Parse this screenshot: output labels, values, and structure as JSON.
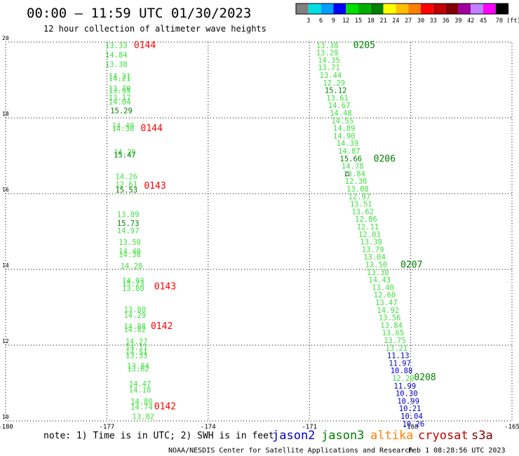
{
  "header": {
    "title": "00:00 – 11:59 UTC 01/30/2023",
    "subtitle": "12 hour collection of altimeter wave heights"
  },
  "colorbar": {
    "labels": [
      "3",
      "6",
      "9",
      "12",
      "15",
      "18",
      "21",
      "24",
      "27",
      "30",
      "33",
      "36",
      "39",
      "42",
      "45",
      "70 (ft)"
    ],
    "colors": [
      "#808080",
      "#00e0e0",
      "#00a0ff",
      "#0000ff",
      "#00e000",
      "#00b000",
      "#008000",
      "#ffff00",
      "#ffc000",
      "#ff8000",
      "#ff0000",
      "#c00000",
      "#800000",
      "#a000a0",
      "#c080ff",
      "#ff00ff",
      "#000000"
    ]
  },
  "footer": {
    "note": "note: 1) Time is in UTC; 2) SWH is in feet",
    "legend": [
      {
        "name": "jason2",
        "color": "#0000c0"
      },
      {
        "name": "jason3",
        "color": "#008000"
      },
      {
        "name": "altika",
        "color": "#ff8000"
      },
      {
        "name": "cryosat",
        "color": "#c00000"
      },
      {
        "name": "s3a",
        "color": "#800000"
      }
    ],
    "credit": "NOAA/NESDIS Center for Satellite Applications and Research",
    "timestamp": "Feb  1 08:28:56 UTC 2023"
  },
  "chart_data": {
    "type": "scatter",
    "xlim": [
      -180,
      -165
    ],
    "ylim": [
      10,
      20
    ],
    "x_ticks": [
      "-180",
      "-177",
      "-174",
      "-171",
      "-168",
      "-165"
    ],
    "y_ticks": [
      "10",
      "12",
      "14",
      "16",
      "18",
      "20"
    ],
    "grid": true,
    "tracks": [
      {
        "id": "left",
        "points": [
          {
            "x": -177.05,
            "y": 19.92,
            "v": "13.33",
            "c": "#40e040"
          },
          {
            "x": -177.05,
            "y": 19.67,
            "v": "14.84",
            "c": "#40e040"
          },
          {
            "x": -177.05,
            "y": 19.42,
            "v": "13.38",
            "c": "#40e040"
          },
          {
            "x": -176.95,
            "y": 19.1,
            "v": "14.21",
            "c": "#40e040"
          },
          {
            "x": -176.95,
            "y": 19.05,
            "v": "14.21",
            "c": "#40e040"
          },
          {
            "x": -176.95,
            "y": 18.78,
            "v": "13.29",
            "c": "#40e040"
          },
          {
            "x": -176.95,
            "y": 18.72,
            "v": "13.95",
            "c": "#40e040"
          },
          {
            "x": -176.95,
            "y": 18.54,
            "v": "13.17",
            "c": "#40e040"
          },
          {
            "x": -176.95,
            "y": 18.43,
            "v": "14.04",
            "c": "#40e040"
          },
          {
            "x": -176.9,
            "y": 18.19,
            "v": "15.29",
            "c": "#008000"
          },
          {
            "x": -176.85,
            "y": 17.8,
            "v": "14.49",
            "c": "#40e040"
          },
          {
            "x": -176.85,
            "y": 17.72,
            "v": "14.38",
            "c": "#40e040"
          },
          {
            "x": -176.8,
            "y": 17.1,
            "v": "14.29",
            "c": "#40e040"
          },
          {
            "x": -176.8,
            "y": 17.03,
            "v": "15.47",
            "c": "#008000"
          },
          {
            "x": -176.75,
            "y": 16.45,
            "v": "14.26",
            "c": "#40e040"
          },
          {
            "x": -176.75,
            "y": 16.25,
            "v": "12.61",
            "c": "#40e040"
          },
          {
            "x": -176.75,
            "y": 16.1,
            "v": "15.53",
            "c": "#008000"
          },
          {
            "x": -176.7,
            "y": 15.45,
            "v": "13.89",
            "c": "#40e040"
          },
          {
            "x": -176.7,
            "y": 15.22,
            "v": "15.73",
            "c": "#008000"
          },
          {
            "x": -176.7,
            "y": 15.03,
            "v": "14.97",
            "c": "#40e040"
          },
          {
            "x": -176.65,
            "y": 14.72,
            "v": "13.50",
            "c": "#40e040"
          },
          {
            "x": -176.65,
            "y": 14.48,
            "v": "14.40",
            "c": "#40e040"
          },
          {
            "x": -176.65,
            "y": 14.4,
            "v": "14.38",
            "c": "#40e040"
          },
          {
            "x": -176.6,
            "y": 14.09,
            "v": "14.28",
            "c": "#40e040"
          },
          {
            "x": -176.55,
            "y": 13.7,
            "v": "14.93",
            "c": "#40e040"
          },
          {
            "x": -176.55,
            "y": 13.63,
            "v": "15.23",
            "c": "#40e040"
          },
          {
            "x": -176.55,
            "y": 13.5,
            "v": "13.80",
            "c": "#40e040"
          },
          {
            "x": -176.5,
            "y": 12.94,
            "v": "13.80",
            "c": "#40e040"
          },
          {
            "x": -176.5,
            "y": 12.8,
            "v": "14.29",
            "c": "#40e040"
          },
          {
            "x": -176.5,
            "y": 12.5,
            "v": "14.88",
            "c": "#40e040"
          },
          {
            "x": -176.5,
            "y": 12.42,
            "v": "14.82",
            "c": "#40e040"
          },
          {
            "x": -176.45,
            "y": 12.1,
            "v": "14.27",
            "c": "#40e040"
          },
          {
            "x": -176.45,
            "y": 11.95,
            "v": "14.11",
            "c": "#40e040"
          },
          {
            "x": -176.45,
            "y": 11.82,
            "v": "14.51",
            "c": "#40e040"
          },
          {
            "x": -176.45,
            "y": 11.73,
            "v": "13.33",
            "c": "#40e040"
          },
          {
            "x": -176.4,
            "y": 11.45,
            "v": "13.84",
            "c": "#40e040"
          },
          {
            "x": -176.4,
            "y": 11.38,
            "v": "13.62",
            "c": "#40e040"
          },
          {
            "x": -176.35,
            "y": 10.98,
            "v": "14.47",
            "c": "#40e040"
          },
          {
            "x": -176.35,
            "y": 10.82,
            "v": "14.18",
            "c": "#40e040"
          },
          {
            "x": -176.3,
            "y": 10.52,
            "v": "14.80",
            "c": "#40e040"
          },
          {
            "x": -176.3,
            "y": 10.37,
            "v": "14.74",
            "c": "#40e040"
          },
          {
            "x": -176.25,
            "y": 10.12,
            "v": "13.82",
            "c": "#40e040"
          }
        ]
      },
      {
        "id": "right",
        "points": [
          {
            "x": -170.8,
            "y": 19.92,
            "v": "13.38",
            "c": "#40e040"
          },
          {
            "x": -170.8,
            "y": 19.72,
            "v": "13.29",
            "c": "#40e040"
          },
          {
            "x": -170.75,
            "y": 19.53,
            "v": "14.35",
            "c": "#40e040"
          },
          {
            "x": -170.75,
            "y": 19.33,
            "v": "13.71",
            "c": "#40e040"
          },
          {
            "x": -170.7,
            "y": 19.13,
            "v": "13.44",
            "c": "#40e040"
          },
          {
            "x": -170.6,
            "y": 18.93,
            "v": "12.29",
            "c": "#40e040"
          },
          {
            "x": -170.55,
            "y": 18.73,
            "v": "15.12",
            "c": "#008000"
          },
          {
            "x": -170.5,
            "y": 18.53,
            "v": "13.61",
            "c": "#40e040"
          },
          {
            "x": -170.45,
            "y": 18.33,
            "v": "14.67",
            "c": "#40e040"
          },
          {
            "x": -170.4,
            "y": 18.13,
            "v": "14.48",
            "c": "#40e040"
          },
          {
            "x": -170.35,
            "y": 17.93,
            "v": "14.55",
            "c": "#40e040"
          },
          {
            "x": -170.3,
            "y": 17.73,
            "v": "14.89",
            "c": "#40e040"
          },
          {
            "x": -170.3,
            "y": 17.53,
            "v": "14.90",
            "c": "#40e040"
          },
          {
            "x": -170.2,
            "y": 17.33,
            "v": "14.39",
            "c": "#40e040"
          },
          {
            "x": -170.15,
            "y": 17.13,
            "v": "14.87",
            "c": "#40e040"
          },
          {
            "x": -170.1,
            "y": 16.93,
            "v": "15.66",
            "c": "#008000"
          },
          {
            "x": -170.05,
            "y": 16.73,
            "v": "14.78",
            "c": "#40e040"
          },
          {
            "x": -170.0,
            "y": 16.53,
            "v": "13.84",
            "c": "#40e040"
          },
          {
            "x": -169.95,
            "y": 16.33,
            "v": "12.30",
            "c": "#40e040"
          },
          {
            "x": -169.9,
            "y": 16.13,
            "v": "13.08",
            "c": "#40e040"
          },
          {
            "x": -169.85,
            "y": 15.93,
            "v": "12.97",
            "c": "#40e040"
          },
          {
            "x": -169.8,
            "y": 15.73,
            "v": "13.51",
            "c": "#40e040"
          },
          {
            "x": -169.75,
            "y": 15.53,
            "v": "13.62",
            "c": "#40e040"
          },
          {
            "x": -169.65,
            "y": 15.33,
            "v": "12.86",
            "c": "#40e040"
          },
          {
            "x": -169.6,
            "y": 15.13,
            "v": "12.11",
            "c": "#40e040"
          },
          {
            "x": -169.55,
            "y": 14.93,
            "v": "12.03",
            "c": "#40e040"
          },
          {
            "x": -169.5,
            "y": 14.73,
            "v": "13.38",
            "c": "#40e040"
          },
          {
            "x": -169.45,
            "y": 14.53,
            "v": "13.79",
            "c": "#40e040"
          },
          {
            "x": -169.4,
            "y": 14.33,
            "v": "13.04",
            "c": "#40e040"
          },
          {
            "x": -169.35,
            "y": 14.13,
            "v": "13.50",
            "c": "#40e040"
          },
          {
            "x": -169.3,
            "y": 13.93,
            "v": "13.30",
            "c": "#40e040"
          },
          {
            "x": -169.25,
            "y": 13.73,
            "v": "14.43",
            "c": "#40e040"
          },
          {
            "x": -169.15,
            "y": 13.53,
            "v": "13.40",
            "c": "#40e040"
          },
          {
            "x": -169.1,
            "y": 13.33,
            "v": "12.60",
            "c": "#40e040"
          },
          {
            "x": -169.05,
            "y": 13.13,
            "v": "13.47",
            "c": "#40e040"
          },
          {
            "x": -169.0,
            "y": 12.93,
            "v": "14.92",
            "c": "#40e040"
          },
          {
            "x": -168.95,
            "y": 12.73,
            "v": "13.56",
            "c": "#40e040"
          },
          {
            "x": -168.9,
            "y": 12.53,
            "v": "13.84",
            "c": "#40e040"
          },
          {
            "x": -168.85,
            "y": 12.33,
            "v": "13.65",
            "c": "#40e040"
          },
          {
            "x": -168.8,
            "y": 12.13,
            "v": "13.75",
            "c": "#40e040"
          },
          {
            "x": -168.75,
            "y": 11.93,
            "v": "13.21",
            "c": "#40e040"
          },
          {
            "x": -168.7,
            "y": 11.73,
            "v": "11.13",
            "c": "#0000c0"
          },
          {
            "x": -168.65,
            "y": 11.53,
            "v": "11.97",
            "c": "#0000c0"
          },
          {
            "x": -168.6,
            "y": 11.33,
            "v": "10.88",
            "c": "#0000c0"
          },
          {
            "x": -168.55,
            "y": 11.13,
            "v": "12.29",
            "c": "#40e040"
          },
          {
            "x": -168.5,
            "y": 10.93,
            "v": "11.99",
            "c": "#0000c0"
          },
          {
            "x": -168.45,
            "y": 10.73,
            "v": "10.30",
            "c": "#0000c0"
          },
          {
            "x": -168.4,
            "y": 10.53,
            "v": "10.99",
            "c": "#0000c0"
          },
          {
            "x": -168.35,
            "y": 10.33,
            "v": "10.21",
            "c": "#0000c0"
          },
          {
            "x": -168.3,
            "y": 10.13,
            "v": "10.04",
            "c": "#0000c0"
          },
          {
            "x": -168.25,
            "y": 9.93,
            "v": "10.26",
            "c": "#0000c0"
          }
        ]
      }
    ],
    "time_labels": [
      {
        "x": -176.2,
        "y": 19.92,
        "t": "0144",
        "c": "#ff0000"
      },
      {
        "x": -176.0,
        "y": 17.72,
        "t": "0144",
        "c": "#ff0000"
      },
      {
        "x": -175.9,
        "y": 16.2,
        "t": "0143",
        "c": "#ff0000"
      },
      {
        "x": -175.6,
        "y": 13.55,
        "t": "0143",
        "c": "#ff0000"
      },
      {
        "x": -175.7,
        "y": 12.5,
        "t": "0142",
        "c": "#ff0000"
      },
      {
        "x": -175.6,
        "y": 10.38,
        "t": "0142",
        "c": "#ff0000"
      },
      {
        "x": -169.7,
        "y": 19.92,
        "t": "0205",
        "c": "#008000"
      },
      {
        "x": -169.1,
        "y": 16.92,
        "t": "0206",
        "c": "#008000"
      },
      {
        "x": -168.3,
        "y": 14.12,
        "t": "0207",
        "c": "#008000"
      },
      {
        "x": -167.9,
        "y": 11.15,
        "t": "0208",
        "c": "#008000"
      }
    ],
    "markers": [
      {
        "x": -169.95,
        "y": 16.55,
        "t": "⌂"
      }
    ]
  }
}
